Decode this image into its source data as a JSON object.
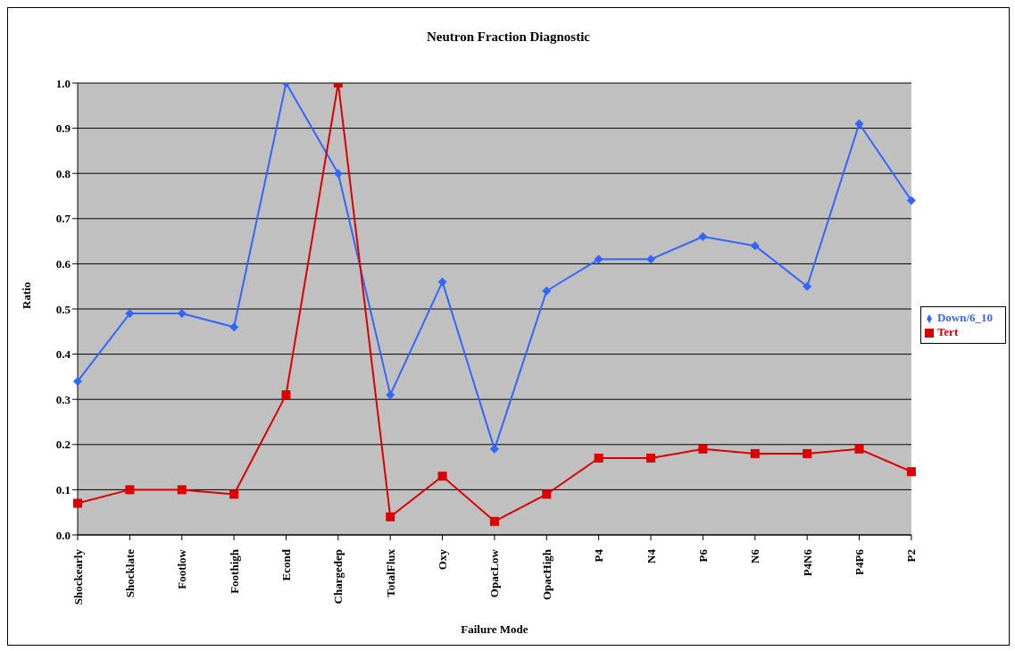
{
  "chart_data": {
    "type": "line",
    "title": "Neutron Fraction Diagnostic",
    "xlabel": "Failure Mode",
    "ylabel": "Ratio",
    "categories": [
      "Shockearly",
      "Shocklate",
      "Footlow",
      "Foothigh",
      "Econd",
      "Chargedep",
      "TotalFlux",
      "Oxy",
      "OpacLow",
      "OpacHigh",
      "P4",
      "N4",
      "P6",
      "N6",
      "P4N6",
      "P4P6",
      "P2"
    ],
    "series": [
      {
        "name": "Down/6_10",
        "color": "#3366ff",
        "marker": "diamond",
        "values": [
          0.34,
          0.49,
          0.49,
          0.46,
          1.0,
          0.8,
          0.31,
          0.56,
          0.19,
          0.54,
          0.61,
          0.61,
          0.66,
          0.64,
          0.55,
          0.91,
          0.74
        ]
      },
      {
        "name": "Tert",
        "color": "#dd0000",
        "marker": "square",
        "values": [
          0.07,
          0.1,
          0.1,
          0.09,
          0.31,
          1.0,
          0.04,
          0.13,
          0.03,
          0.09,
          0.17,
          0.17,
          0.19,
          0.18,
          0.18,
          0.19,
          0.14
        ]
      }
    ],
    "ylim": [
      0,
      1
    ],
    "yticks": [
      {
        "value": 0,
        "label": "0.0"
      },
      {
        "value": 0.1,
        "label": "0.1"
      },
      {
        "value": 0.2,
        "label": "0.2"
      },
      {
        "value": 0.3,
        "label": "0.3"
      },
      {
        "value": 0.4,
        "label": "0.4"
      },
      {
        "value": 0.5,
        "label": "0.5"
      },
      {
        "value": 0.6,
        "label": "0.6"
      },
      {
        "value": 0.7,
        "label": "0.7"
      },
      {
        "value": 0.8,
        "label": "0.8"
      },
      {
        "value": 0.9,
        "label": "0.9"
      },
      {
        "value": 1,
        "label": "1.0"
      }
    ],
    "grid": "y",
    "legend": "right",
    "line_style": "solid"
  }
}
